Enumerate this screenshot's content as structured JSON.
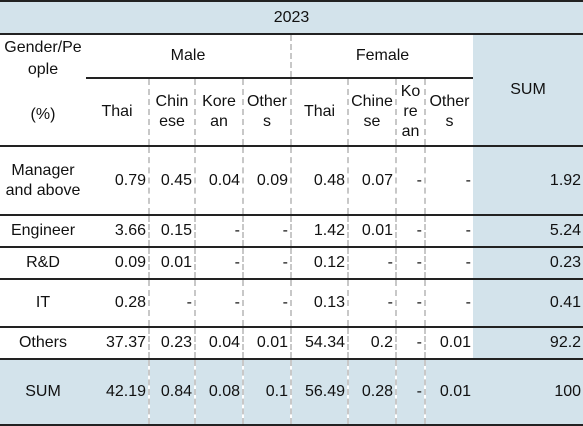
{
  "year": "2023",
  "header": {
    "corner_top": "Gender/People",
    "corner_bottom": "(%)",
    "male": "Male",
    "female": "Female",
    "sum": "SUM",
    "sub": [
      "Thai",
      "Chinese",
      "Korean",
      "Others",
      "Thai",
      "Chinese",
      "Korean",
      "Others"
    ]
  },
  "rows": [
    {
      "label": "Manager and above",
      "cells": [
        "0.79",
        "0.45",
        "0.04",
        "0.09",
        "0.48",
        "0.07",
        "-",
        "-"
      ],
      "sum": "1.92"
    },
    {
      "label": "Engineer",
      "cells": [
        "3.66",
        "0.15",
        "-",
        "-",
        "1.42",
        "0.01",
        "-",
        "-"
      ],
      "sum": "5.24"
    },
    {
      "label": "R&D",
      "cells": [
        "0.09",
        "0.01",
        "-",
        "-",
        "0.12",
        "-",
        "-",
        "-"
      ],
      "sum": "0.23"
    },
    {
      "label": "IT",
      "cells": [
        "0.28",
        "-",
        "-",
        "-",
        "0.13",
        "-",
        "-",
        "-"
      ],
      "sum": "0.41"
    },
    {
      "label": "Others",
      "cells": [
        "37.37",
        "0.23",
        "0.04",
        "0.01",
        "54.34",
        "0.2",
        "-",
        "0.01"
      ],
      "sum": "92.2"
    },
    {
      "label": "SUM",
      "cells": [
        "42.19",
        "0.84",
        "0.08",
        "0.1",
        "56.49",
        "0.28",
        "-",
        "0.01"
      ],
      "sum": "100"
    }
  ]
}
